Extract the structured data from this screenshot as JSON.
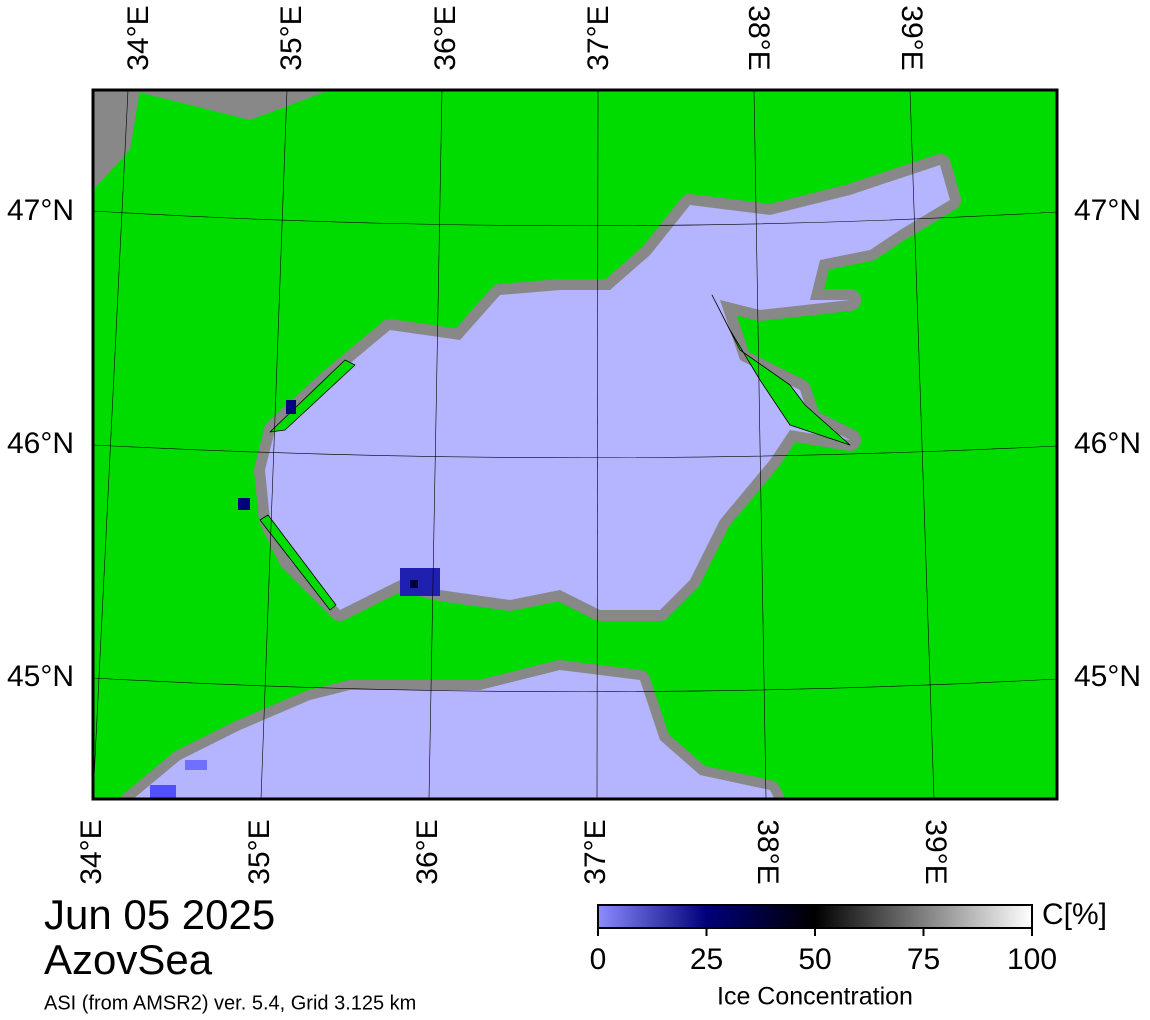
{
  "map": {
    "top_labels": [
      "34°E",
      "35°E",
      "36°E",
      "37°E",
      "38°E",
      "39°E"
    ],
    "bottom_labels": [
      "34°E",
      "35°E",
      "36°E",
      "37°E",
      "38°E",
      "39°E"
    ],
    "left_labels": [
      "47°N",
      "46°N",
      "45°N"
    ],
    "right_labels": [
      "47°N",
      "46°N",
      "45°N"
    ]
  },
  "caption": {
    "date": "Jun 05 2025",
    "region": "AzovSea",
    "source": "ASI (from AMSR2) ver. 5.4,  Grid 3.125 km"
  },
  "colorbar": {
    "unit": "C[%]",
    "label": "Ice Concentration",
    "range": [
      0,
      100
    ],
    "ticks": [
      0,
      25,
      50,
      75,
      100
    ]
  }
}
